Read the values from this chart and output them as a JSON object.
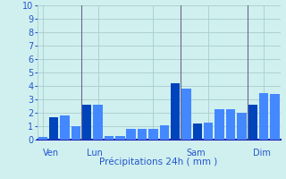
{
  "bar_values": [
    0.2,
    1.7,
    1.8,
    1.0,
    2.6,
    2.6,
    0.3,
    0.3,
    0.8,
    0.8,
    0.8,
    1.1,
    4.2,
    3.8,
    1.2,
    1.3,
    2.3,
    2.3,
    2.0,
    2.6,
    3.5,
    3.4
  ],
  "dark_bars": [
    1,
    4,
    12,
    14,
    19
  ],
  "xlabel": "Précipitations 24h ( mm )",
  "ylim": [
    0,
    10
  ],
  "yticks": [
    0,
    1,
    2,
    3,
    4,
    5,
    6,
    7,
    8,
    9,
    10
  ],
  "day_labels": [
    "Ven",
    "Lun",
    "Sam",
    "Dim"
  ],
  "day_label_bars": [
    0,
    4,
    13,
    19
  ],
  "vline_positions": [
    3.5,
    12.5,
    18.5
  ],
  "bg_color": "#d0f0f0",
  "grid_color": "#aacccc",
  "bar_light": "#4488ff",
  "bar_dark": "#0044bb",
  "axis_color": "#2222aa",
  "text_color": "#2255cc",
  "xlabel_fontsize": 7.5,
  "ylabel_fontsize": 7,
  "tick_fontsize": 7
}
